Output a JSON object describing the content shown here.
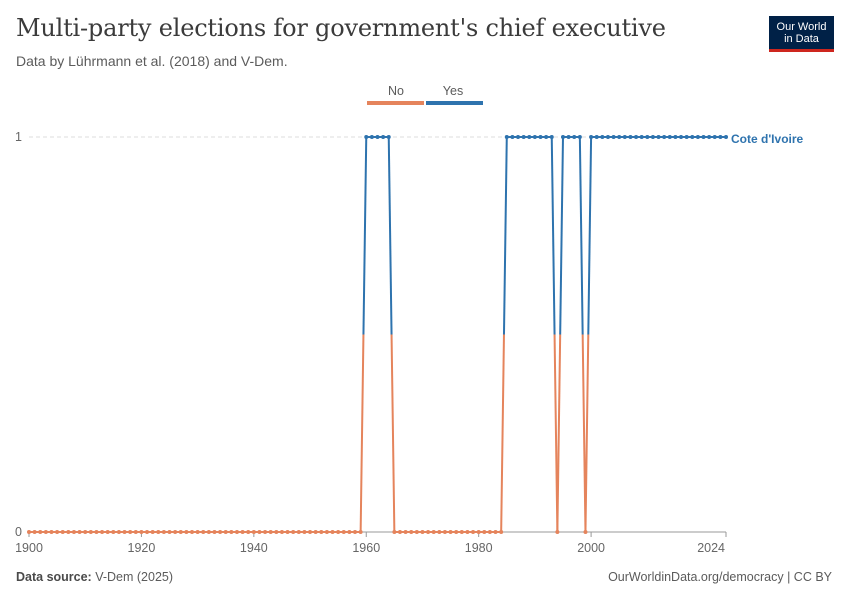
{
  "header": {
    "title": "Multi-party elections for government's chief executive",
    "subtitle": "Data by Lührmann et al. (2018) and V-Dem."
  },
  "logo": {
    "line1": "Our World",
    "line2": "in Data"
  },
  "footer": {
    "source_label": "Data source:",
    "source_value": "V-Dem (2025)",
    "url_license": "OurWorldinData.org/democracy | CC BY"
  },
  "colors": {
    "no": "#e5845c",
    "yes": "#2e73ae",
    "grid": "#dddddd",
    "axis": "#666666"
  },
  "chart_data": {
    "type": "line",
    "legend": [
      "No",
      "Yes"
    ],
    "legend_position": "top",
    "series": [
      {
        "name": "Cote d'Ivoire",
        "segments": [
          [
            1900,
            1959,
            0
          ],
          [
            1960,
            1964,
            1
          ],
          [
            1965,
            1984,
            0
          ],
          [
            1985,
            1993,
            1
          ],
          [
            1994,
            1994,
            0
          ],
          [
            1995,
            1998,
            1
          ],
          [
            1999,
            1999,
            0
          ],
          [
            2000,
            2024,
            1
          ]
        ]
      }
    ],
    "x_ticks": [
      "1900",
      "1920",
      "1940",
      "1960",
      "1980",
      "2000",
      "2024"
    ],
    "y_ticks": [
      "0",
      "1"
    ],
    "xlim": [
      1900,
      2024
    ],
    "ylim": [
      0,
      1
    ],
    "grid": true
  }
}
